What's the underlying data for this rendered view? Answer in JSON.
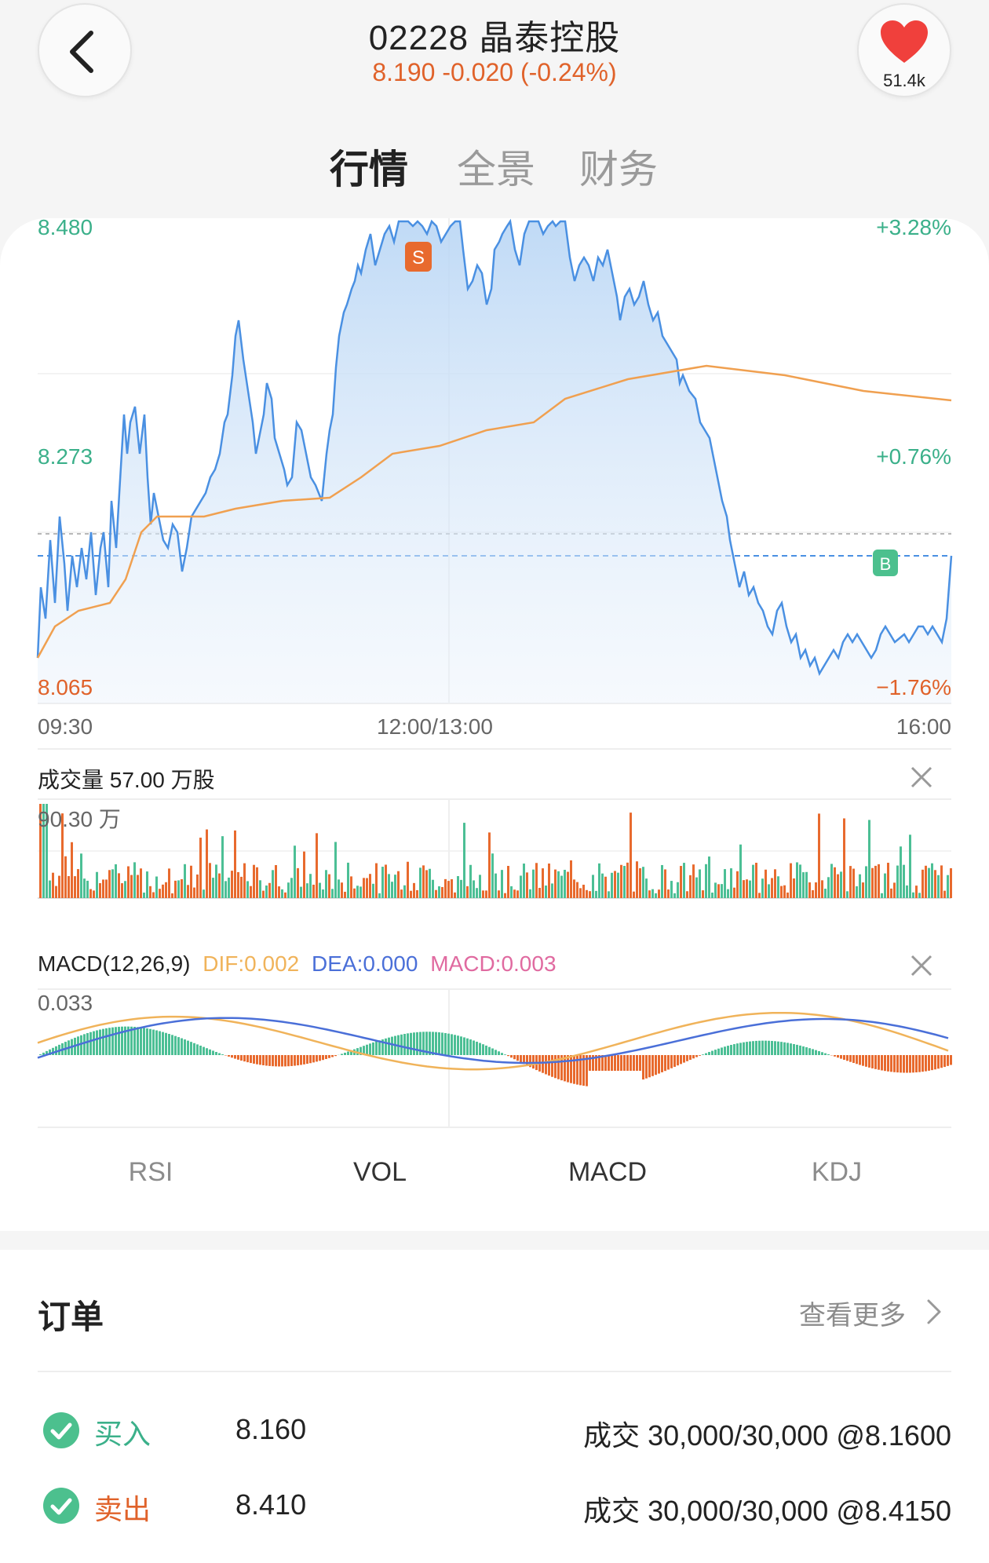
{
  "header": {
    "title": "02228 晶泰控股",
    "quote": "8.190 -0.020 (-0.24%)",
    "favorite_count": "51.4k"
  },
  "tabs": [
    {
      "label": "行情",
      "active": true
    },
    {
      "label": "全景",
      "active": false
    },
    {
      "label": "财务",
      "active": false
    }
  ],
  "price_chart": {
    "y_max_label": "8.480",
    "y_mid_label": "8.273",
    "y_min_label": "8.065",
    "pct_max_label": "+3.28%",
    "pct_mid_label": "+0.76%",
    "pct_min_label": "−1.76%",
    "time_start": "09:30",
    "time_mid": "12:00/13:00",
    "time_end": "16:00",
    "sell_marker": "S",
    "buy_marker": "B",
    "colors": {
      "price_line": "#4a90e2",
      "avg_line": "#f0a050",
      "up": "#3bb08a",
      "down": "#e0622a"
    }
  },
  "volume_panel": {
    "title": "成交量  57.00 万股",
    "max_label": "90.30 万"
  },
  "macd_panel": {
    "title": "MACD(12,26,9)",
    "dif": "DIF:0.002",
    "dea": "DEA:0.000",
    "macd": "MACD:0.003",
    "max_label": "0.033",
    "colors": {
      "dif": "#f0b35a",
      "dea": "#4a6fd8",
      "macd": "#e06aa0"
    }
  },
  "chart_data": {
    "type": "line",
    "x": [
      "09:30",
      "12:00/13:00",
      "16:00"
    ],
    "ylim": [
      8.065,
      8.48
    ],
    "series": []
  },
  "indicator_tabs": [
    {
      "label": "RSI",
      "active": false
    },
    {
      "label": "VOL",
      "active": true
    },
    {
      "label": "MACD",
      "active": true
    },
    {
      "label": "KDJ",
      "active": false
    }
  ],
  "orders": {
    "title": "订单",
    "more_label": "查看更多",
    "items": [
      {
        "side": "买入",
        "price": "8.160",
        "fill": "成交 30,000/30,000 @8.1600"
      },
      {
        "side": "卖出",
        "price": "8.410",
        "fill": "成交 30,000/30,000 @8.4150"
      }
    ]
  }
}
